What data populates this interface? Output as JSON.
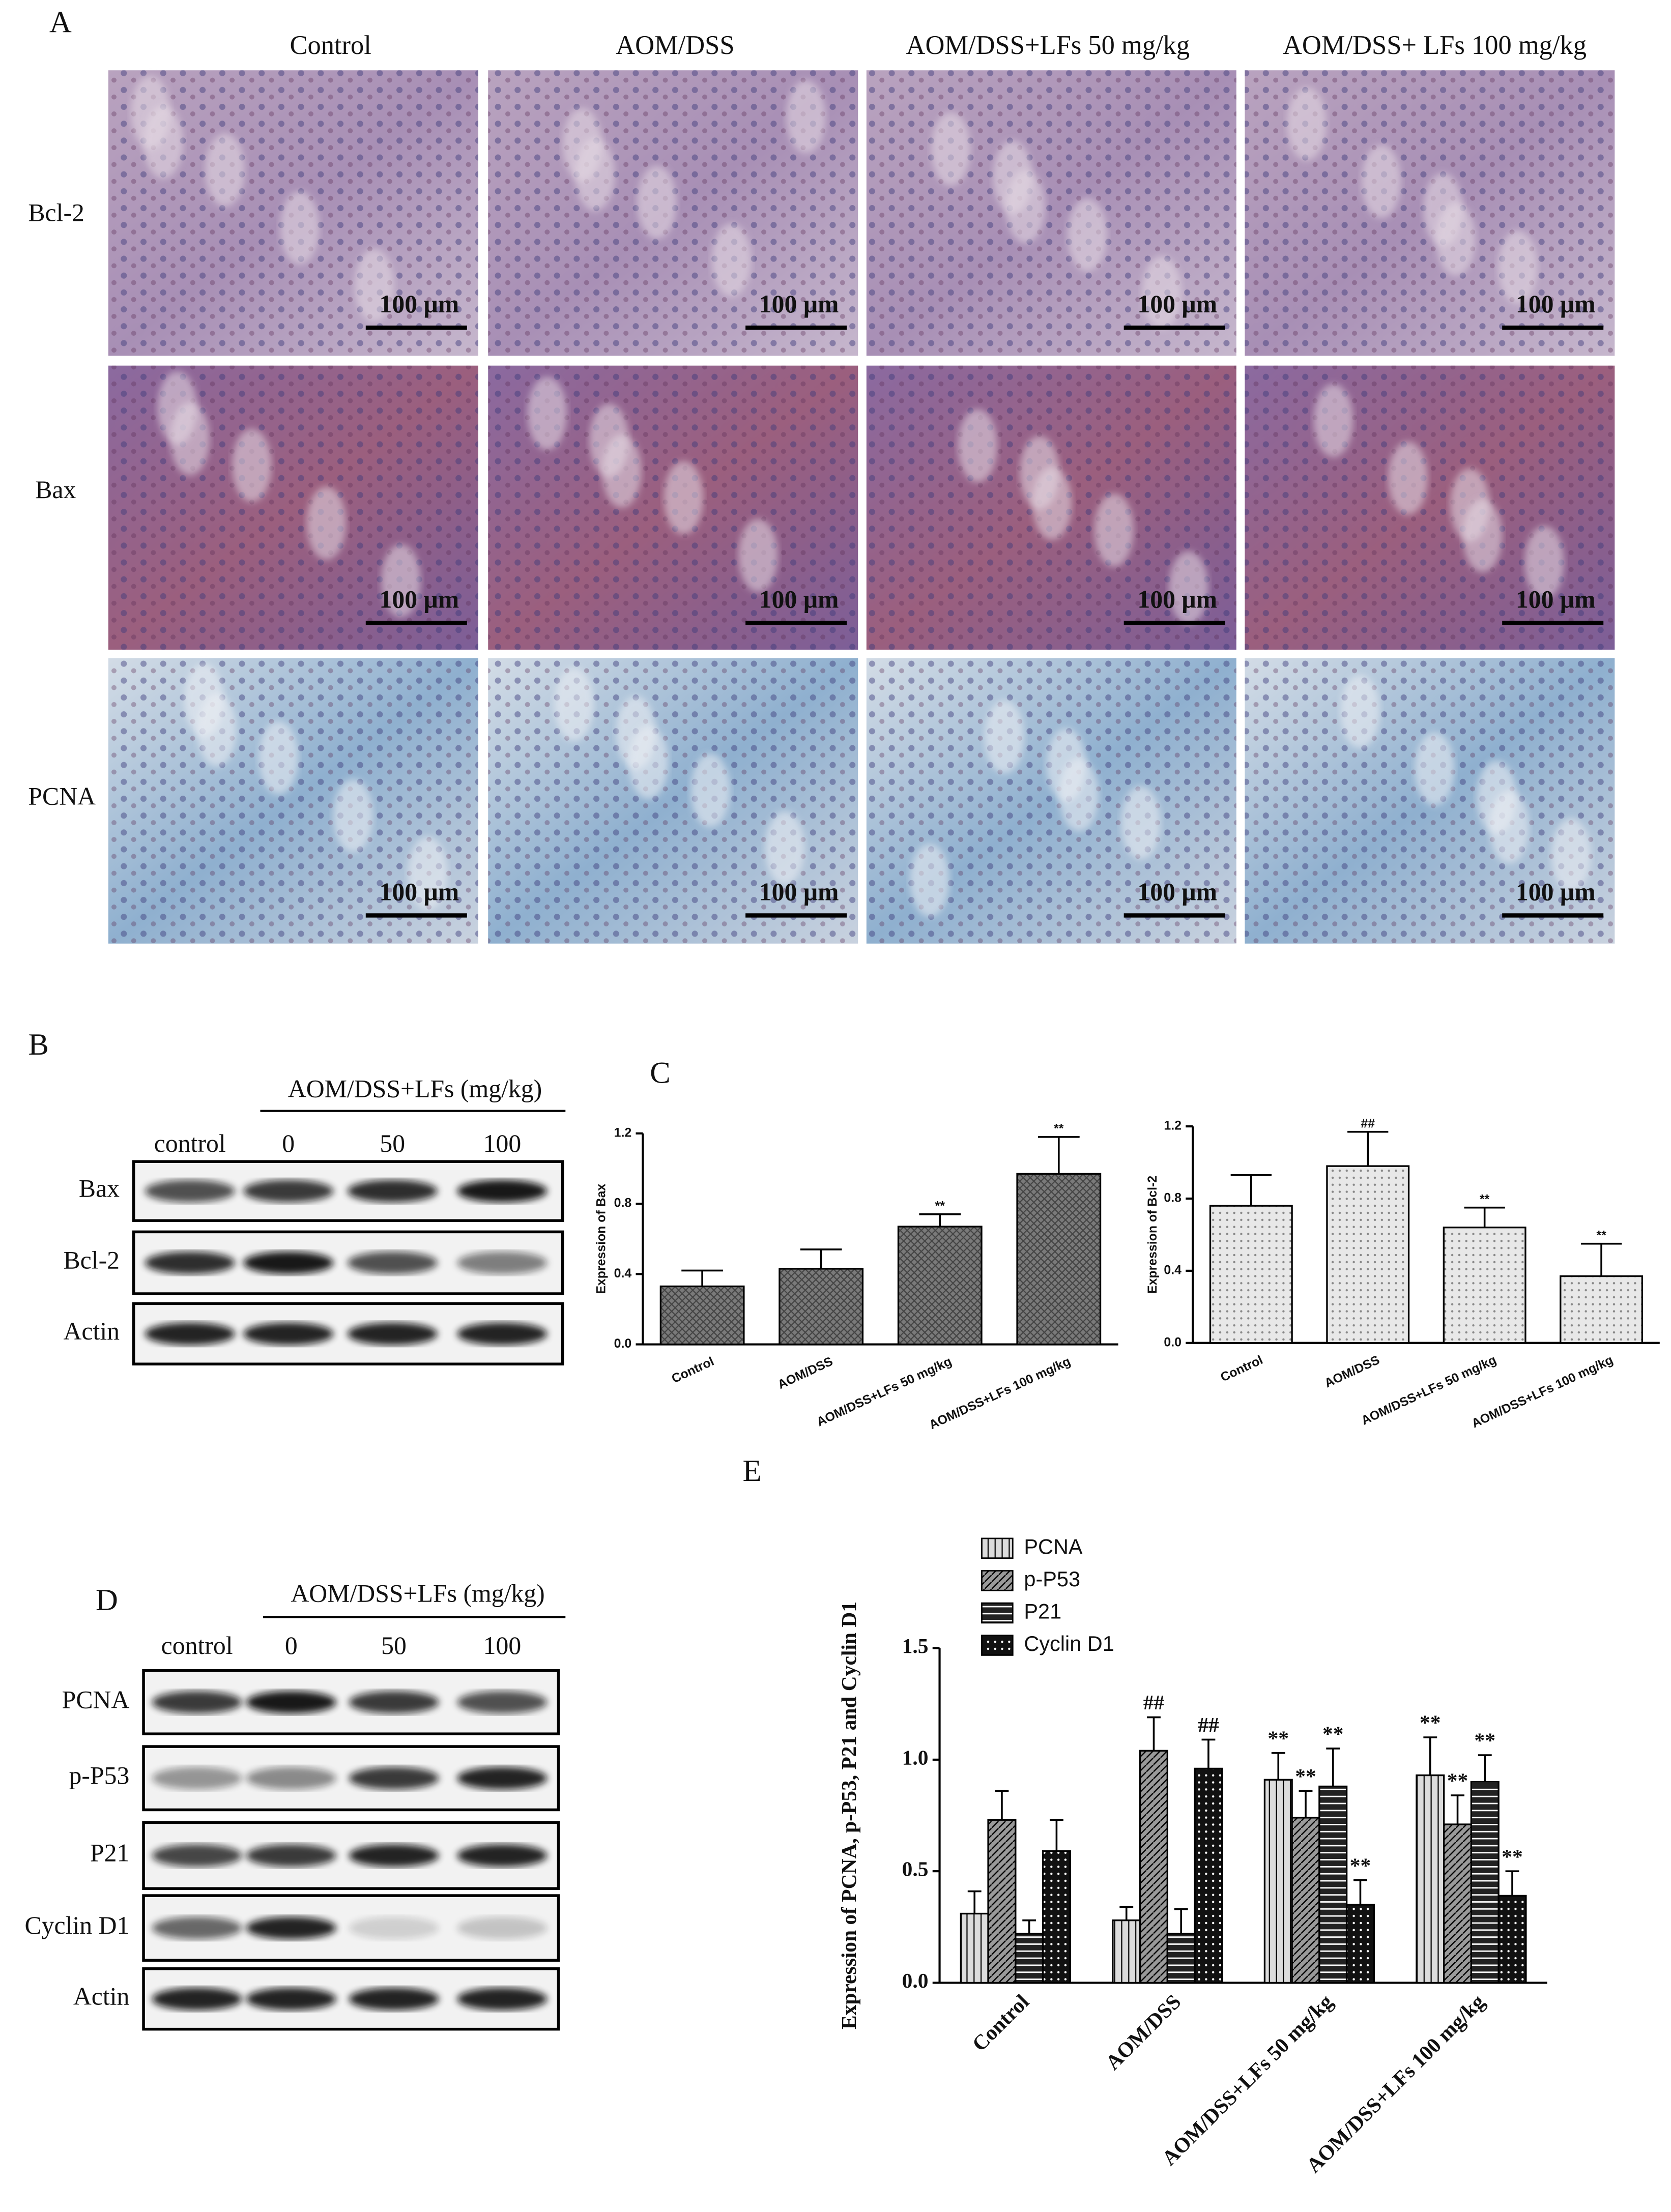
{
  "panel_labels": [
    "A",
    "B",
    "C",
    "D",
    "E"
  ],
  "histology": {
    "columns": [
      "Control",
      "AOM/DSS",
      "AOM/DSS+LFs 50 mg/kg",
      "AOM/DSS+ LFs 100 mg/kg"
    ],
    "rows": [
      "Bcl-2",
      "Bax",
      "PCNA"
    ],
    "scale_bar": "100 μm"
  },
  "blot_b": {
    "header": "AOM/DSS+LFs (mg/kg)",
    "lanes": [
      "control",
      "0",
      "50",
      "100"
    ],
    "rows": [
      "Bax",
      "Bcl-2",
      "Actin"
    ]
  },
  "blot_d": {
    "header": "AOM/DSS+LFs (mg/kg)",
    "lanes": [
      "control",
      "0",
      "50",
      "100"
    ],
    "rows": [
      "PCNA",
      "p-P53",
      "P21",
      "Cyclin D1",
      "Actin"
    ]
  },
  "chart_data": [
    {
      "type": "bar",
      "y_label": "Expression of Bax",
      "categories": [
        "Control",
        "AOM/DSS",
        "AOM/DSS+LFs 50 mg/kg",
        "AOM/DSS+LFs 100 mg/kg"
      ],
      "values": [
        0.33,
        0.43,
        0.67,
        0.97
      ],
      "errors": [
        0.09,
        0.11,
        0.07,
        0.21
      ],
      "annotations": [
        null,
        null,
        "**",
        "**"
      ],
      "color": "#7a7a7a",
      "pattern": "crosshatch",
      "ylim": [
        0,
        1.2
      ],
      "yticks": [
        {
          "value": 0,
          "label": "0.0"
        },
        0.4,
        0.8,
        1.2
      ]
    },
    {
      "type": "bar",
      "y_label": "Expression of Bcl-2",
      "categories": [
        "Control",
        "AOM/DSS",
        "AOM/DSS+LFs 50 mg/kg",
        "AOM/DSS+LFs 100 mg/kg"
      ],
      "values": [
        0.76,
        0.98,
        0.64,
        0.37
      ],
      "errors": [
        0.17,
        0.19,
        0.11,
        0.18
      ],
      "annotations": [
        null,
        "##",
        "**",
        "**"
      ],
      "color": "#e8e8e8",
      "pattern": "dots",
      "ylim": [
        0,
        1.2
      ],
      "yticks": [
        {
          "value": 0,
          "label": "0.0"
        },
        0.4,
        0.8,
        1.2
      ]
    },
    {
      "type": "grouped_bar",
      "y_label": "Expression of PCNA, p-P53, P21 and Cyclin D1",
      "categories": [
        "Control",
        "AOM/DSS",
        "AOM/DSS+LFs 50 mg/kg",
        "AOM/DSS+LFs 100 mg/kg"
      ],
      "series": [
        {
          "name": "PCNA",
          "color": "#dcdcdc",
          "pattern": "vlines",
          "values": [
            0.31,
            0.28,
            0.91,
            0.93
          ],
          "errors": [
            0.1,
            0.06,
            0.12,
            0.17
          ],
          "annotations": [
            null,
            null,
            "**",
            "**"
          ]
        },
        {
          "name": "p-P53",
          "color": "#9a9a9a",
          "pattern": "diagonal",
          "values": [
            0.73,
            1.04,
            0.74,
            0.71
          ],
          "errors": [
            0.13,
            0.15,
            0.12,
            0.13
          ],
          "annotations": [
            null,
            "##",
            "**",
            "**"
          ]
        },
        {
          "name": "P21",
          "color": "#222222",
          "pattern": "hlines",
          "values": [
            0.22,
            0.22,
            0.88,
            0.9
          ],
          "errors": [
            0.06,
            0.11,
            0.17,
            0.12
          ],
          "annotations": [
            null,
            null,
            "**",
            "**"
          ]
        },
        {
          "name": "Cyclin D1",
          "color": "#111111",
          "pattern": "dots",
          "values": [
            0.59,
            0.96,
            0.35,
            0.39
          ],
          "errors": [
            0.14,
            0.13,
            0.11,
            0.11
          ],
          "annotations": [
            null,
            "##",
            "**",
            "**"
          ]
        }
      ],
      "legend": "top-left",
      "ylim": [
        0,
        1.5
      ],
      "yticks": [
        {
          "value": 0,
          "label": "0.0"
        },
        0.5,
        {
          "value": 1,
          "label": "1.0"
        },
        1.5
      ]
    }
  ]
}
